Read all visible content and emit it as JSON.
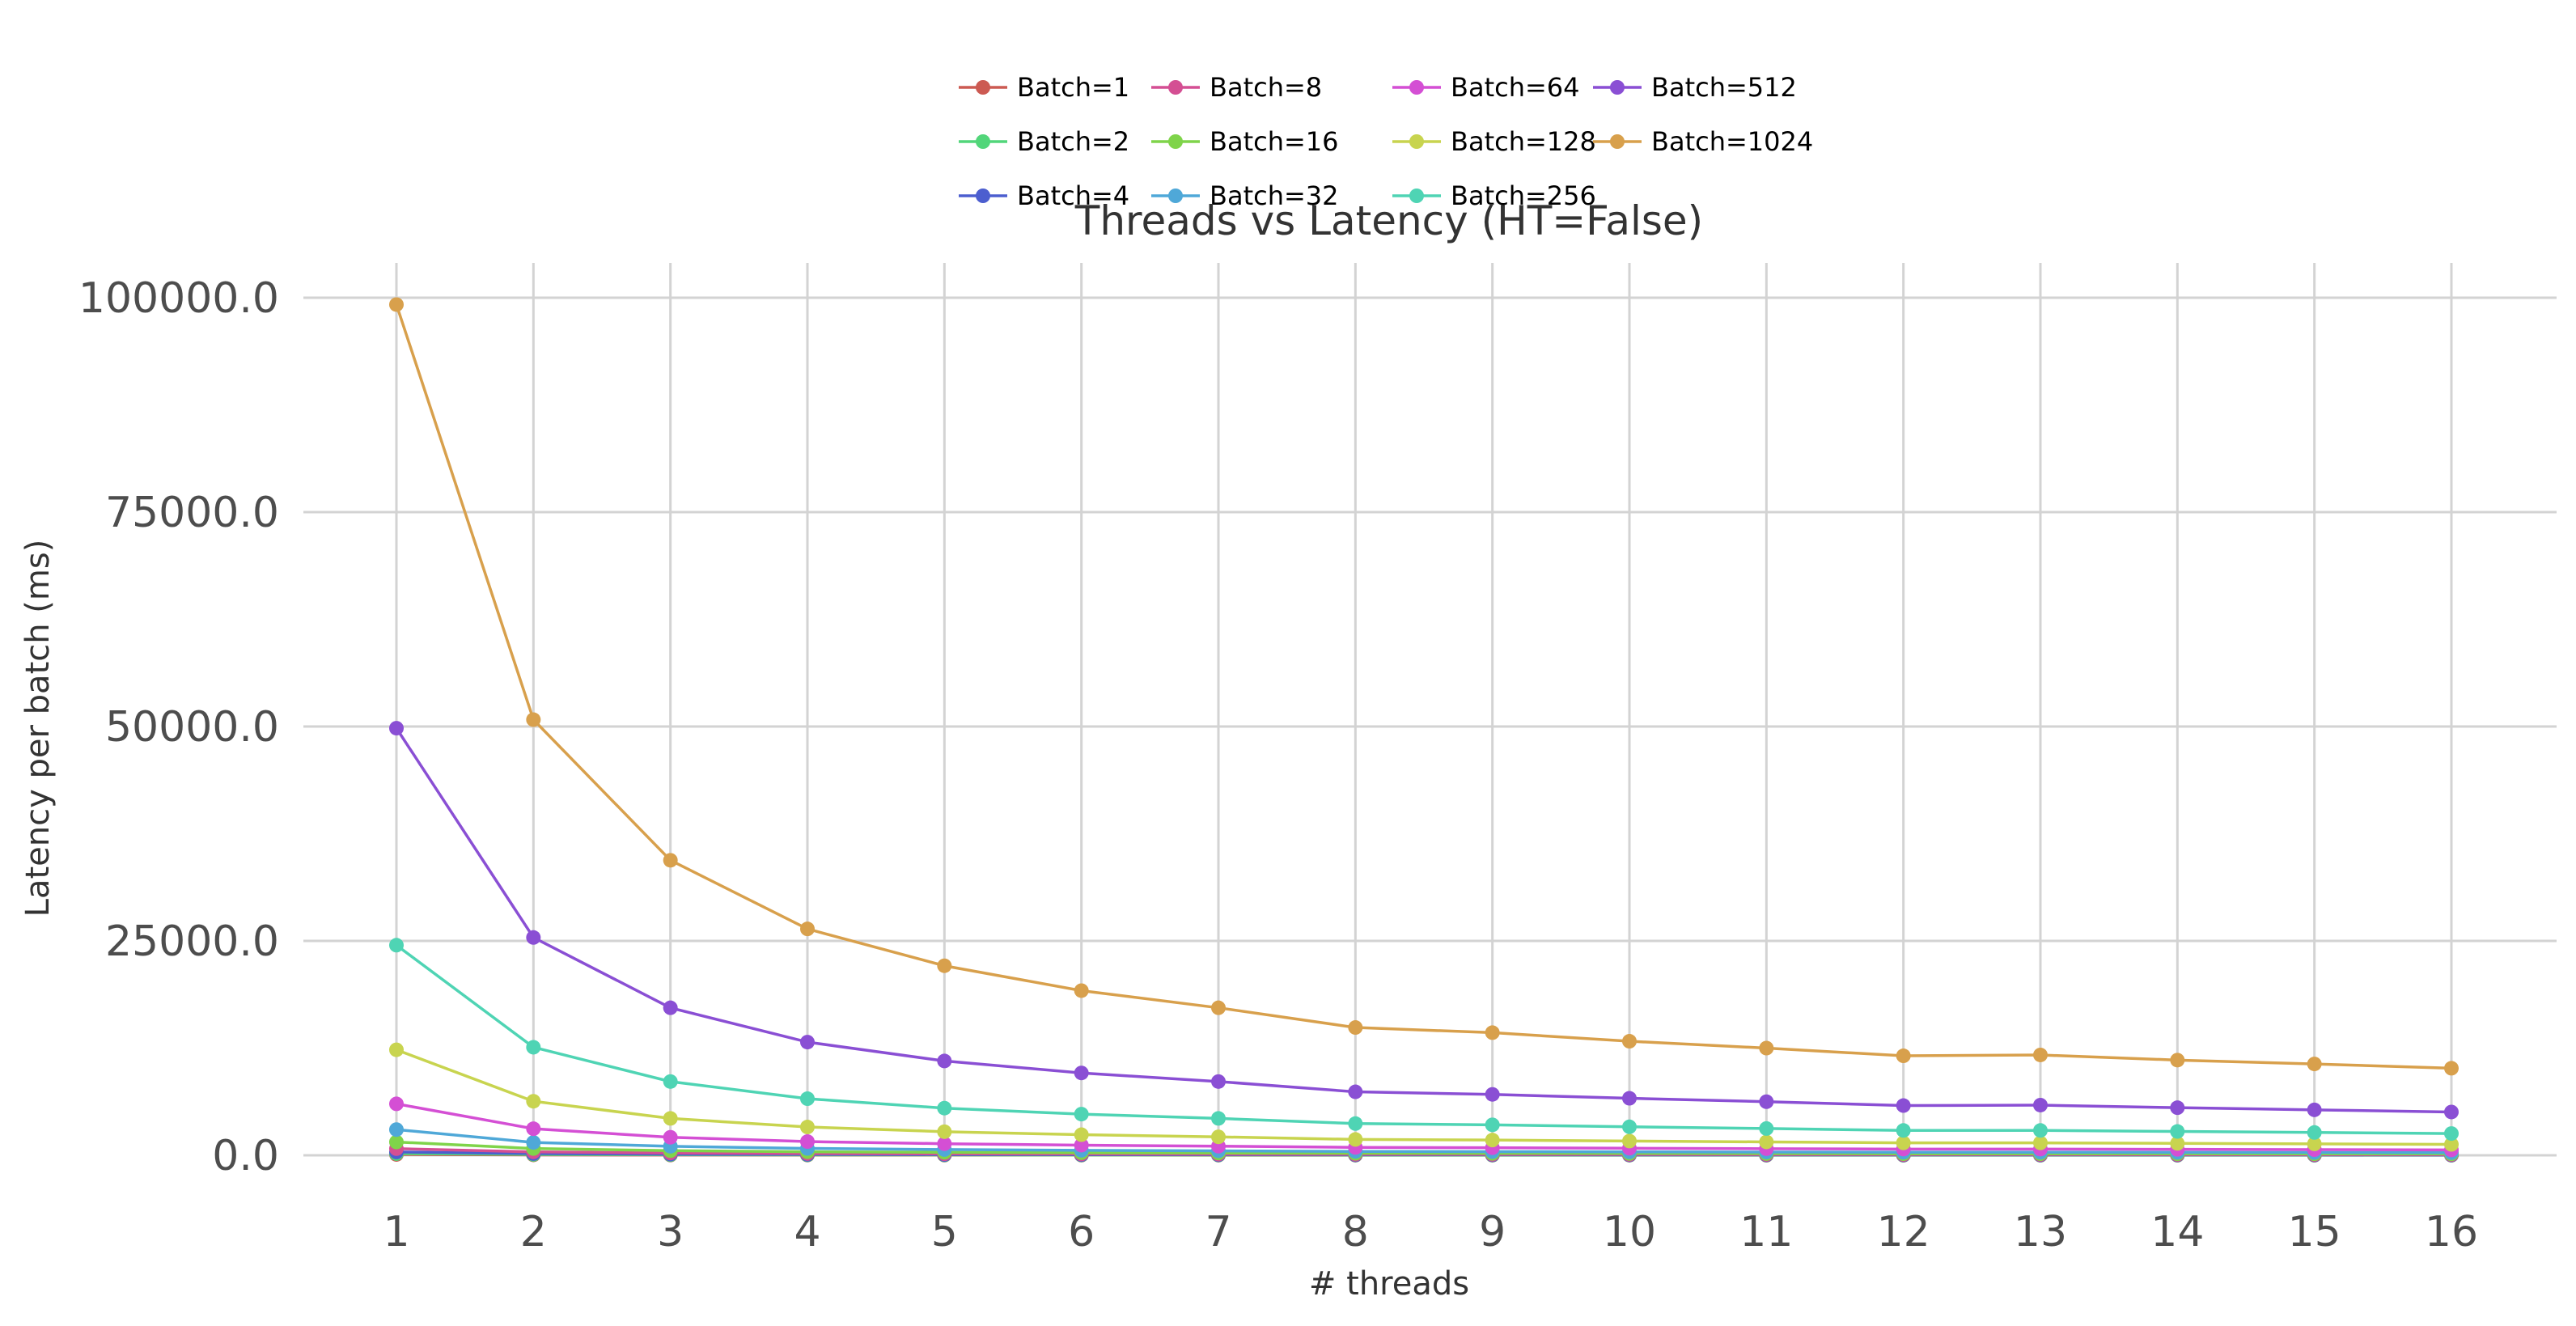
{
  "chart_data": {
    "type": "line",
    "title": "Threads vs Latency (HT=False)",
    "xlabel": "# threads",
    "ylabel": "Latency per batch (ms)",
    "x": [
      1,
      2,
      3,
      4,
      5,
      6,
      7,
      8,
      9,
      10,
      11,
      12,
      13,
      14,
      15,
      16
    ],
    "x_tick_labels": [
      "1",
      "2",
      "3",
      "4",
      "5",
      "6",
      "7",
      "8",
      "9",
      "10",
      "11",
      "12",
      "13",
      "14",
      "15",
      "16"
    ],
    "ylim": [
      0,
      100000
    ],
    "y_ticks": [
      0,
      25000,
      50000,
      75000,
      100000
    ],
    "y_tick_labels": [
      "0.0",
      "25000.0",
      "50000.0",
      "75000.0",
      "100000.0"
    ],
    "grid": true,
    "legend_position": "top-center",
    "series": [
      {
        "name": "Batch=1",
        "color": "#cc5a52",
        "values": [
          97,
          50,
          34,
          26,
          22,
          19,
          17,
          15,
          14,
          13,
          12,
          11,
          11,
          11,
          10,
          10
        ]
      },
      {
        "name": "Batch=2",
        "color": "#52d67a",
        "values": [
          194,
          99,
          68,
          52,
          43,
          37,
          33,
          29,
          28,
          26,
          24,
          23,
          23,
          22,
          21,
          20
        ]
      },
      {
        "name": "Batch=4",
        "color": "#4c5ecf",
        "values": [
          388,
          198,
          135,
          103,
          86,
          75,
          67,
          58,
          56,
          52,
          49,
          46,
          46,
          44,
          42,
          40
        ]
      },
      {
        "name": "Batch=8",
        "color": "#d44f93",
        "values": [
          776,
          396,
          270,
          206,
          172,
          150,
          134,
          116,
          112,
          104,
          98,
          91,
          91,
          87,
          84,
          80
        ]
      },
      {
        "name": "Batch=16",
        "color": "#7fd44a",
        "values": [
          1550,
          790,
          540,
          412,
          344,
          300,
          268,
          232,
          224,
          208,
          196,
          182,
          182,
          174,
          168,
          160
        ]
      },
      {
        "name": "Batch=32",
        "color": "#4fa8d8",
        "values": [
          3000,
          1500,
          1050,
          800,
          670,
          580,
          520,
          450,
          430,
          400,
          380,
          355,
          355,
          340,
          330,
          310
        ]
      },
      {
        "name": "Batch=64",
        "color": "#d44fd4",
        "values": [
          6000,
          3100,
          2100,
          1600,
          1350,
          1180,
          1060,
          920,
          880,
          820,
          770,
          720,
          720,
          690,
          660,
          630
        ]
      },
      {
        "name": "Batch=128",
        "color": "#c8d44f",
        "values": [
          12300,
          6300,
          4300,
          3300,
          2750,
          2400,
          2150,
          1850,
          1780,
          1660,
          1560,
          1450,
          1450,
          1390,
          1330,
          1270
        ]
      },
      {
        "name": "Batch=256",
        "color": "#4fd4b4",
        "values": [
          24500,
          12600,
          8600,
          6600,
          5500,
          4800,
          4300,
          3700,
          3550,
          3320,
          3120,
          2900,
          2900,
          2780,
          2660,
          2540
        ]
      },
      {
        "name": "Batch=512",
        "color": "#8a4fd4",
        "values": [
          49800,
          25400,
          17200,
          13200,
          11000,
          9600,
          8600,
          7400,
          7100,
          6650,
          6250,
          5800,
          5850,
          5550,
          5300,
          5050
        ]
      },
      {
        "name": "Batch=1024",
        "color": "#d8a04c",
        "values": [
          99200,
          50800,
          34400,
          26400,
          22100,
          19200,
          17200,
          14900,
          14300,
          13300,
          12500,
          11600,
          11700,
          11100,
          10650,
          10150
        ]
      }
    ]
  }
}
